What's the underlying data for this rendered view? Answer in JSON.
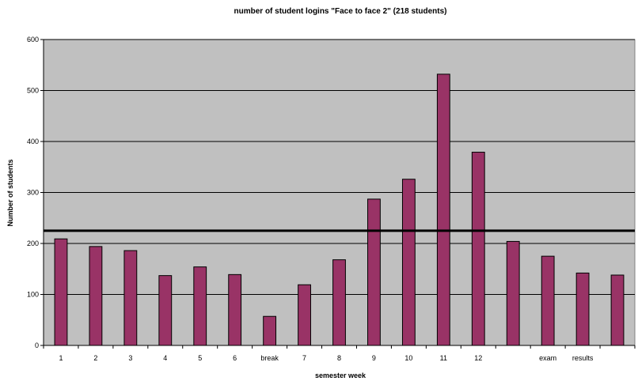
{
  "chart_data": {
    "type": "bar",
    "title": "number of student logins \"Face to face 2\" (218 students)",
    "xlabel": "semester week",
    "ylabel": "Number of students",
    "categories": [
      "1",
      "2",
      "3",
      "4",
      "5",
      "6",
      "break",
      "7",
      "8",
      "9",
      "10",
      "11",
      "12",
      "",
      "exam",
      "results",
      ""
    ],
    "values": [
      209,
      194,
      186,
      137,
      154,
      139,
      57,
      119,
      168,
      287,
      326,
      532,
      379,
      204,
      175,
      142,
      138
    ],
    "ylim": [
      0,
      600
    ],
    "yticks": [
      0,
      100,
      200,
      300,
      400,
      500,
      600
    ],
    "reference_line": 225,
    "grid": true,
    "legend": "none",
    "colors": {
      "bar_fill": "#993366",
      "bar_stroke": "#000000",
      "plot_background": "#c0c0c0",
      "reference_line": "#000000"
    }
  }
}
